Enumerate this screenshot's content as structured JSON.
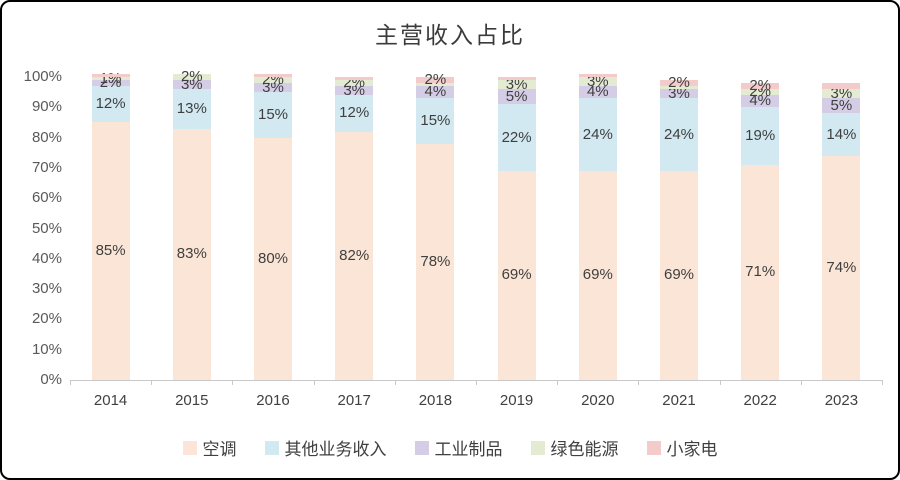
{
  "title": "主营收入占比",
  "chart_data": {
    "type": "bar",
    "stacked": true,
    "title": "主营收入占比",
    "xlabel": "",
    "ylabel": "",
    "ylim": [
      0,
      100
    ],
    "grid": false,
    "legend_position": "bottom",
    "yticks": [
      "0%",
      "10%",
      "20%",
      "30%",
      "40%",
      "50%",
      "60%",
      "70%",
      "80%",
      "90%",
      "100%"
    ],
    "categories": [
      "2014",
      "2015",
      "2016",
      "2017",
      "2018",
      "2019",
      "2020",
      "2021",
      "2022",
      "2023"
    ],
    "series": [
      {
        "name": "空调",
        "color": "#fbe5d6",
        "values": [
          85,
          83,
          80,
          82,
          78,
          69,
          69,
          69,
          71,
          74
        ],
        "labels": [
          "85%",
          "83%",
          "80%",
          "82%",
          "78%",
          "69%",
          "69%",
          "69%",
          "71%",
          "74%"
        ]
      },
      {
        "name": "其他业务收入",
        "color": "#d2e9f1",
        "values": [
          12,
          13,
          15,
          12,
          15,
          22,
          24,
          24,
          19,
          14
        ],
        "labels": [
          "12%",
          "13%",
          "15%",
          "12%",
          "15%",
          "22%",
          "24%",
          "24%",
          "19%",
          "14%"
        ]
      },
      {
        "name": "工业制品",
        "color": "#d5cde6",
        "values": [
          2,
          3,
          3,
          3,
          4,
          5,
          4,
          3,
          4,
          5
        ],
        "labels": [
          "2%",
          "3%",
          "3%",
          "3%",
          "4%",
          "5%",
          "4%",
          "3%",
          "4%",
          "5%"
        ]
      },
      {
        "name": "绿色能源",
        "color": "#e3ecd2",
        "values": [
          1,
          2,
          2,
          2,
          1,
          3,
          3,
          1,
          2,
          3
        ],
        "labels": [
          "1%",
          "2%",
          "2%",
          "2%",
          "",
          "3%",
          "3%",
          "",
          "2%",
          "3%"
        ]
      },
      {
        "name": "小家电",
        "color": "#f4cbcb",
        "values": [
          1,
          0,
          1,
          1,
          2,
          1,
          1,
          2,
          2,
          2
        ],
        "labels": [
          "",
          "",
          "",
          "",
          "2%",
          "",
          "",
          "2%",
          "2%",
          ""
        ]
      }
    ]
  }
}
